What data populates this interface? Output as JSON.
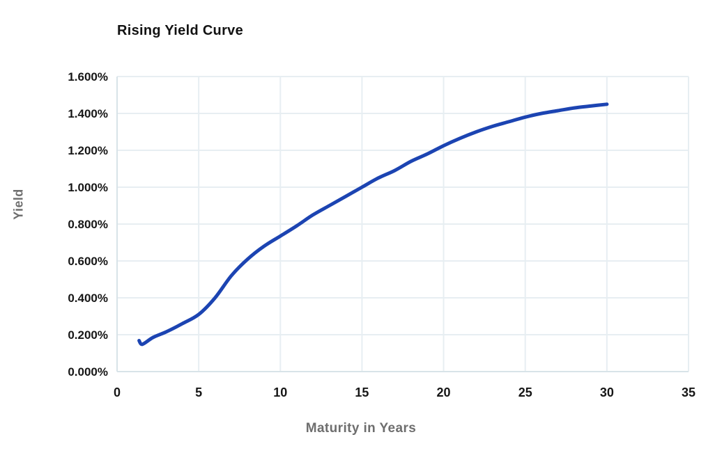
{
  "page": {
    "background_color": "#ffffff"
  },
  "chart": {
    "title": "Rising Yield Curve",
    "colors": {
      "line": "#1c44b2",
      "grid": "#e7eef2",
      "axis": "#d8e3e8",
      "title_text": "#121212",
      "tick_text": "#161616",
      "axis_label_text": "#6e6e6e"
    }
  },
  "chart_data": {
    "type": "line",
    "title": "Rising Yield Curve",
    "xlabel": "Maturity in Years",
    "ylabel": "Yield",
    "xlim": [
      0,
      35
    ],
    "ylim": [
      0,
      1.6
    ],
    "x_ticks": [
      0,
      5,
      10,
      15,
      20,
      25,
      30,
      35
    ],
    "y_tick_values": [
      0,
      0.2,
      0.4,
      0.6,
      0.8,
      1.0,
      1.2,
      1.4,
      1.6
    ],
    "y_tick_labels": [
      "0.000%",
      "0.200%",
      "0.400%",
      "0.600%",
      "0.800%",
      "1.000%",
      "1.200%",
      "1.400%",
      "1.600%"
    ],
    "grid": true,
    "legend": false,
    "series": [
      {
        "name": "Yield",
        "color": "#1c44b2",
        "x": [
          1.35,
          1.55,
          2.2,
          3,
          4,
          5,
          6,
          7,
          8,
          9,
          10,
          11,
          12,
          13,
          14,
          15,
          16,
          17,
          18,
          19,
          20,
          21,
          22,
          23,
          24,
          25,
          26,
          27,
          28,
          29,
          30
        ],
        "y": [
          0.168,
          0.148,
          0.185,
          0.215,
          0.26,
          0.31,
          0.4,
          0.52,
          0.61,
          0.68,
          0.735,
          0.79,
          0.85,
          0.9,
          0.95,
          1.0,
          1.05,
          1.09,
          1.14,
          1.18,
          1.225,
          1.265,
          1.3,
          1.33,
          1.355,
          1.38,
          1.4,
          1.415,
          1.43,
          1.44,
          1.45
        ]
      }
    ]
  }
}
